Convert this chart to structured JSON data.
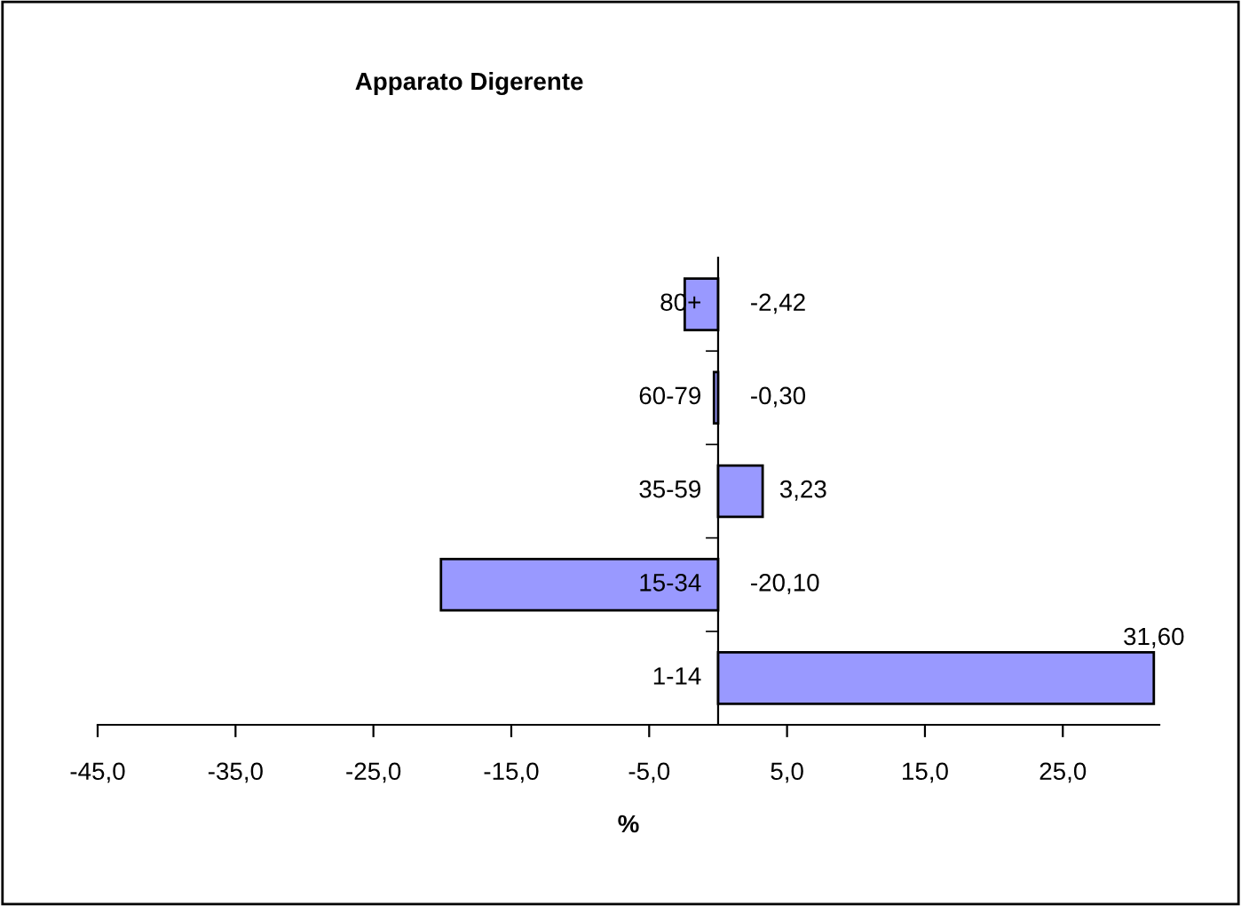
{
  "chart_data": {
    "type": "bar",
    "orientation": "horizontal",
    "title": "Apparato Digerente",
    "xlabel": "%",
    "categories": [
      "80+",
      "60-79",
      "35-59",
      "15-34",
      "1-14"
    ],
    "values": [
      -2.42,
      -0.3,
      3.23,
      -20.1,
      31.6
    ],
    "value_labels": [
      "-2,42",
      "-0,30",
      "3,23",
      "-20,10",
      "31,60"
    ],
    "color": "#9999ff",
    "xlim": [
      -45,
      32
    ],
    "xticks": [
      {
        "value": -45,
        "label": "-45,0"
      },
      {
        "value": -35,
        "label": "-35,0"
      },
      {
        "value": -25,
        "label": "-25,0"
      },
      {
        "value": -15,
        "label": "-15,0"
      },
      {
        "value": -5,
        "label": "-5,0"
      },
      {
        "value": 5,
        "label": "5,0"
      },
      {
        "value": 15,
        "label": "15,0"
      },
      {
        "value": 25,
        "label": "25,0"
      }
    ],
    "grid": false,
    "legend": false
  }
}
